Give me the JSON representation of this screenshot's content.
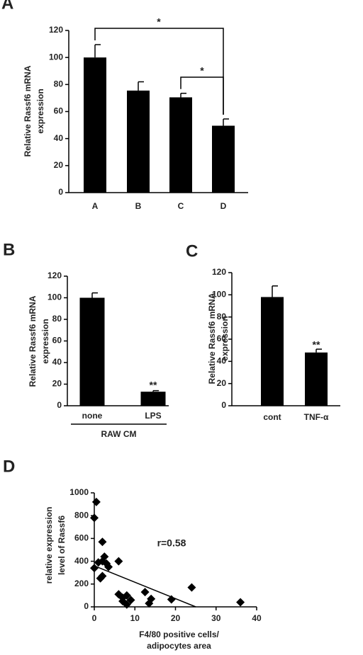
{
  "chart_data": [
    {
      "type": "bar",
      "label": "A",
      "ylabel": [
        "Relative Rassf6 mRNA",
        "expression"
      ],
      "categories": [
        "A",
        "B",
        "C",
        "D"
      ],
      "values": [
        100,
        75.5,
        70.5,
        49.5
      ],
      "errors": [
        9.5,
        6.5,
        3,
        5
      ],
      "color": "#000000",
      "ylim": [
        0,
        120
      ],
      "yticks": [
        0,
        20,
        40,
        60,
        80,
        100,
        120
      ],
      "annotations": [
        "*",
        "*"
      ]
    },
    {
      "type": "bar",
      "label": "B",
      "ylabel": [
        "Relative Rassf6 mRNA",
        "expression"
      ],
      "categories": [
        "none",
        "LPS"
      ],
      "values": [
        100,
        13
      ],
      "errors": [
        4.5,
        1
      ],
      "group_label": "RAW CM",
      "color": "#000000",
      "ylim": [
        0,
        120
      ],
      "yticks": [
        0,
        20,
        40,
        60,
        80,
        100,
        120
      ],
      "annotations": [
        "**"
      ]
    },
    {
      "type": "bar",
      "label": "C",
      "ylabel": [
        "Relative Rassf6 mRNA",
        "expression"
      ],
      "categories": [
        "cont",
        "TNF-α"
      ],
      "values": [
        98,
        48
      ],
      "errors": [
        10,
        3
      ],
      "color": "#000000",
      "ylim": [
        0,
        120
      ],
      "yticks": [
        0,
        20,
        40,
        60,
        80,
        100,
        120
      ],
      "annotations": [
        "**"
      ]
    },
    {
      "type": "scatter",
      "label": "D",
      "ylabel": [
        "relative expression",
        "level of Rassf6"
      ],
      "xlabel": [
        "F4/80 positive cells/",
        "adipocytes area"
      ],
      "x": [
        0.5,
        0,
        2,
        0,
        1,
        2,
        2.5,
        3,
        3.5,
        1.5,
        2,
        6,
        6,
        7,
        7,
        8,
        8,
        9,
        12.5,
        14,
        13.5,
        19,
        24,
        36
      ],
      "y": [
        920,
        780,
        570,
        340,
        390,
        400,
        440,
        380,
        350,
        250,
        270,
        400,
        110,
        80,
        50,
        20,
        100,
        60,
        130,
        70,
        30,
        65,
        170,
        40
      ],
      "trendline": {
        "x": [
          0,
          25
        ],
        "y": [
          360,
          0
        ]
      },
      "color": "#000000",
      "xlim": [
        0,
        40
      ],
      "xticks": [
        0,
        10,
        20,
        30,
        40
      ],
      "ylim": [
        0,
        1000
      ],
      "yticks": [
        0,
        200,
        400,
        600,
        800,
        1000
      ],
      "annotations": [
        "r=0.58"
      ]
    }
  ]
}
